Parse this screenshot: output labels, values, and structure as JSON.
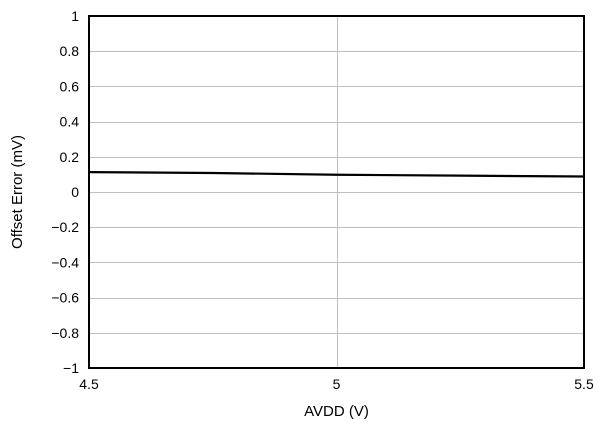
{
  "chart_data": {
    "type": "line",
    "title": "",
    "xlabel": "AVDD (V)",
    "ylabel": "Offset Error (mV)",
    "xlim": [
      4.5,
      5.5
    ],
    "ylim": [
      -1,
      1
    ],
    "x_ticks": [
      4.5,
      5,
      5.5
    ],
    "x_tick_labels": [
      "4.5",
      "5",
      "5.5"
    ],
    "y_ticks": [
      -1,
      -0.8,
      -0.6,
      -0.4,
      -0.2,
      0,
      0.2,
      0.4,
      0.6,
      0.8,
      1
    ],
    "y_tick_labels": [
      "−1",
      "−0.8",
      "−0.6",
      "−0.4",
      "−0.2",
      "0",
      "0.2",
      "0.4",
      "0.6",
      "0.8",
      "1"
    ],
    "grid": true,
    "series_color": "#000000",
    "grid_color": "#bfbfbf",
    "series": [
      {
        "x": [
          4.5,
          4.75,
          5.0,
          5.25,
          5.5
        ],
        "y": [
          0.113,
          0.108,
          0.098,
          0.093,
          0.088
        ]
      }
    ]
  }
}
